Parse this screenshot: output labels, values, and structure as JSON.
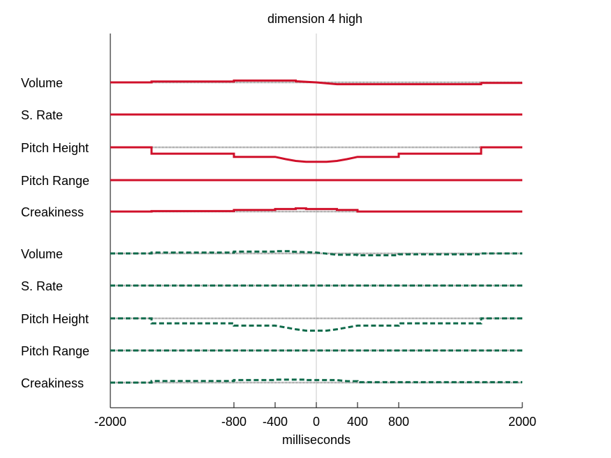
{
  "chart_data": {
    "type": "line",
    "title": "dimension  4 high",
    "xlabel": "milliseconds",
    "xlim": [
      -2000,
      2000
    ],
    "xticks": [
      -2000,
      -800,
      -400,
      0,
      400,
      800,
      2000
    ],
    "groups": [
      {
        "style": "solid",
        "color": "#d0102a",
        "rows": [
          {
            "label": "Volume",
            "points": [
              [
                -2000,
                0.0
              ],
              [
                -1600,
                0.0
              ],
              [
                -1600,
                0.2
              ],
              [
                -800,
                0.2
              ],
              [
                -800,
                0.4
              ],
              [
                -200,
                0.4
              ],
              [
                -200,
                0.25
              ],
              [
                0,
                0.0
              ],
              [
                200,
                -0.4
              ],
              [
                1600,
                -0.4
              ],
              [
                1600,
                -0.1
              ],
              [
                2000,
                -0.1
              ]
            ]
          },
          {
            "label": "S. Rate",
            "points": [
              [
                -2000,
                0.0
              ],
              [
                2000,
                0.0
              ]
            ]
          },
          {
            "label": "Pitch Height",
            "points": [
              [
                -2000,
                0.0
              ],
              [
                -1600,
                0.0
              ],
              [
                -1600,
                -1.4
              ],
              [
                -800,
                -1.4
              ],
              [
                -800,
                -2.1
              ],
              [
                -400,
                -2.1
              ],
              [
                -300,
                -2.6
              ],
              [
                -200,
                -3.0
              ],
              [
                -100,
                -3.2
              ],
              [
                100,
                -3.2
              ],
              [
                200,
                -3.0
              ],
              [
                300,
                -2.6
              ],
              [
                400,
                -2.1
              ],
              [
                800,
                -2.1
              ],
              [
                800,
                -1.4
              ],
              [
                1600,
                -1.4
              ],
              [
                1600,
                0.0
              ],
              [
                2000,
                0.0
              ]
            ]
          },
          {
            "label": "Pitch Range",
            "points": [
              [
                -2000,
                0.0
              ],
              [
                2000,
                0.0
              ]
            ]
          },
          {
            "label": "Creakiness",
            "points": [
              [
                -2000,
                0.0
              ],
              [
                -1600,
                0.0
              ],
              [
                -1600,
                0.1
              ],
              [
                -800,
                0.1
              ],
              [
                -800,
                0.35
              ],
              [
                -400,
                0.35
              ],
              [
                -400,
                0.55
              ],
              [
                -200,
                0.55
              ],
              [
                -200,
                0.7
              ],
              [
                -100,
                0.7
              ],
              [
                -100,
                0.55
              ],
              [
                200,
                0.55
              ],
              [
                200,
                0.35
              ],
              [
                400,
                0.35
              ],
              [
                400,
                0.0
              ],
              [
                2000,
                0.0
              ]
            ]
          }
        ]
      },
      {
        "style": "dashed",
        "color": "#0e6a4a",
        "rows": [
          {
            "label": "Volume",
            "points": [
              [
                -2000,
                0.0
              ],
              [
                -1600,
                0.0
              ],
              [
                -1600,
                0.2
              ],
              [
                -800,
                0.2
              ],
              [
                -800,
                0.4
              ],
              [
                -400,
                0.4
              ],
              [
                -400,
                0.5
              ],
              [
                -250,
                0.5
              ],
              [
                -250,
                0.4
              ],
              [
                0,
                0.2
              ],
              [
                200,
                -0.3
              ],
              [
                400,
                -0.3
              ],
              [
                400,
                -0.4
              ],
              [
                800,
                -0.4
              ],
              [
                800,
                -0.2
              ],
              [
                1600,
                -0.2
              ],
              [
                1600,
                0.0
              ],
              [
                2000,
                0.0
              ]
            ]
          },
          {
            "label": "S. Rate",
            "points": [
              [
                -2000,
                0.0
              ],
              [
                2000,
                0.0
              ]
            ]
          },
          {
            "label": "Pitch Height",
            "points": [
              [
                -2000,
                0.0
              ],
              [
                -1600,
                0.0
              ],
              [
                -1600,
                -1.1
              ],
              [
                -800,
                -1.1
              ],
              [
                -800,
                -1.6
              ],
              [
                -400,
                -1.6
              ],
              [
                -300,
                -2.0
              ],
              [
                -200,
                -2.4
              ],
              [
                -100,
                -2.7
              ],
              [
                100,
                -2.7
              ],
              [
                200,
                -2.4
              ],
              [
                300,
                -2.0
              ],
              [
                400,
                -1.6
              ],
              [
                800,
                -1.6
              ],
              [
                800,
                -1.1
              ],
              [
                1600,
                -1.1
              ],
              [
                1600,
                0.0
              ],
              [
                2000,
                0.0
              ]
            ]
          },
          {
            "label": "Pitch Range",
            "points": [
              [
                -2000,
                0.0
              ],
              [
                2000,
                0.0
              ]
            ]
          },
          {
            "label": "Creakiness",
            "points": [
              [
                -2000,
                0.0
              ],
              [
                -1600,
                0.0
              ],
              [
                -1600,
                0.35
              ],
              [
                -800,
                0.35
              ],
              [
                -800,
                0.55
              ],
              [
                -400,
                0.55
              ],
              [
                -400,
                0.65
              ],
              [
                -100,
                0.65
              ],
              [
                -100,
                0.55
              ],
              [
                200,
                0.55
              ],
              [
                300,
                0.3
              ],
              [
                400,
                0.3
              ],
              [
                400,
                0.1
              ],
              [
                2000,
                0.1
              ]
            ]
          }
        ]
      }
    ]
  }
}
